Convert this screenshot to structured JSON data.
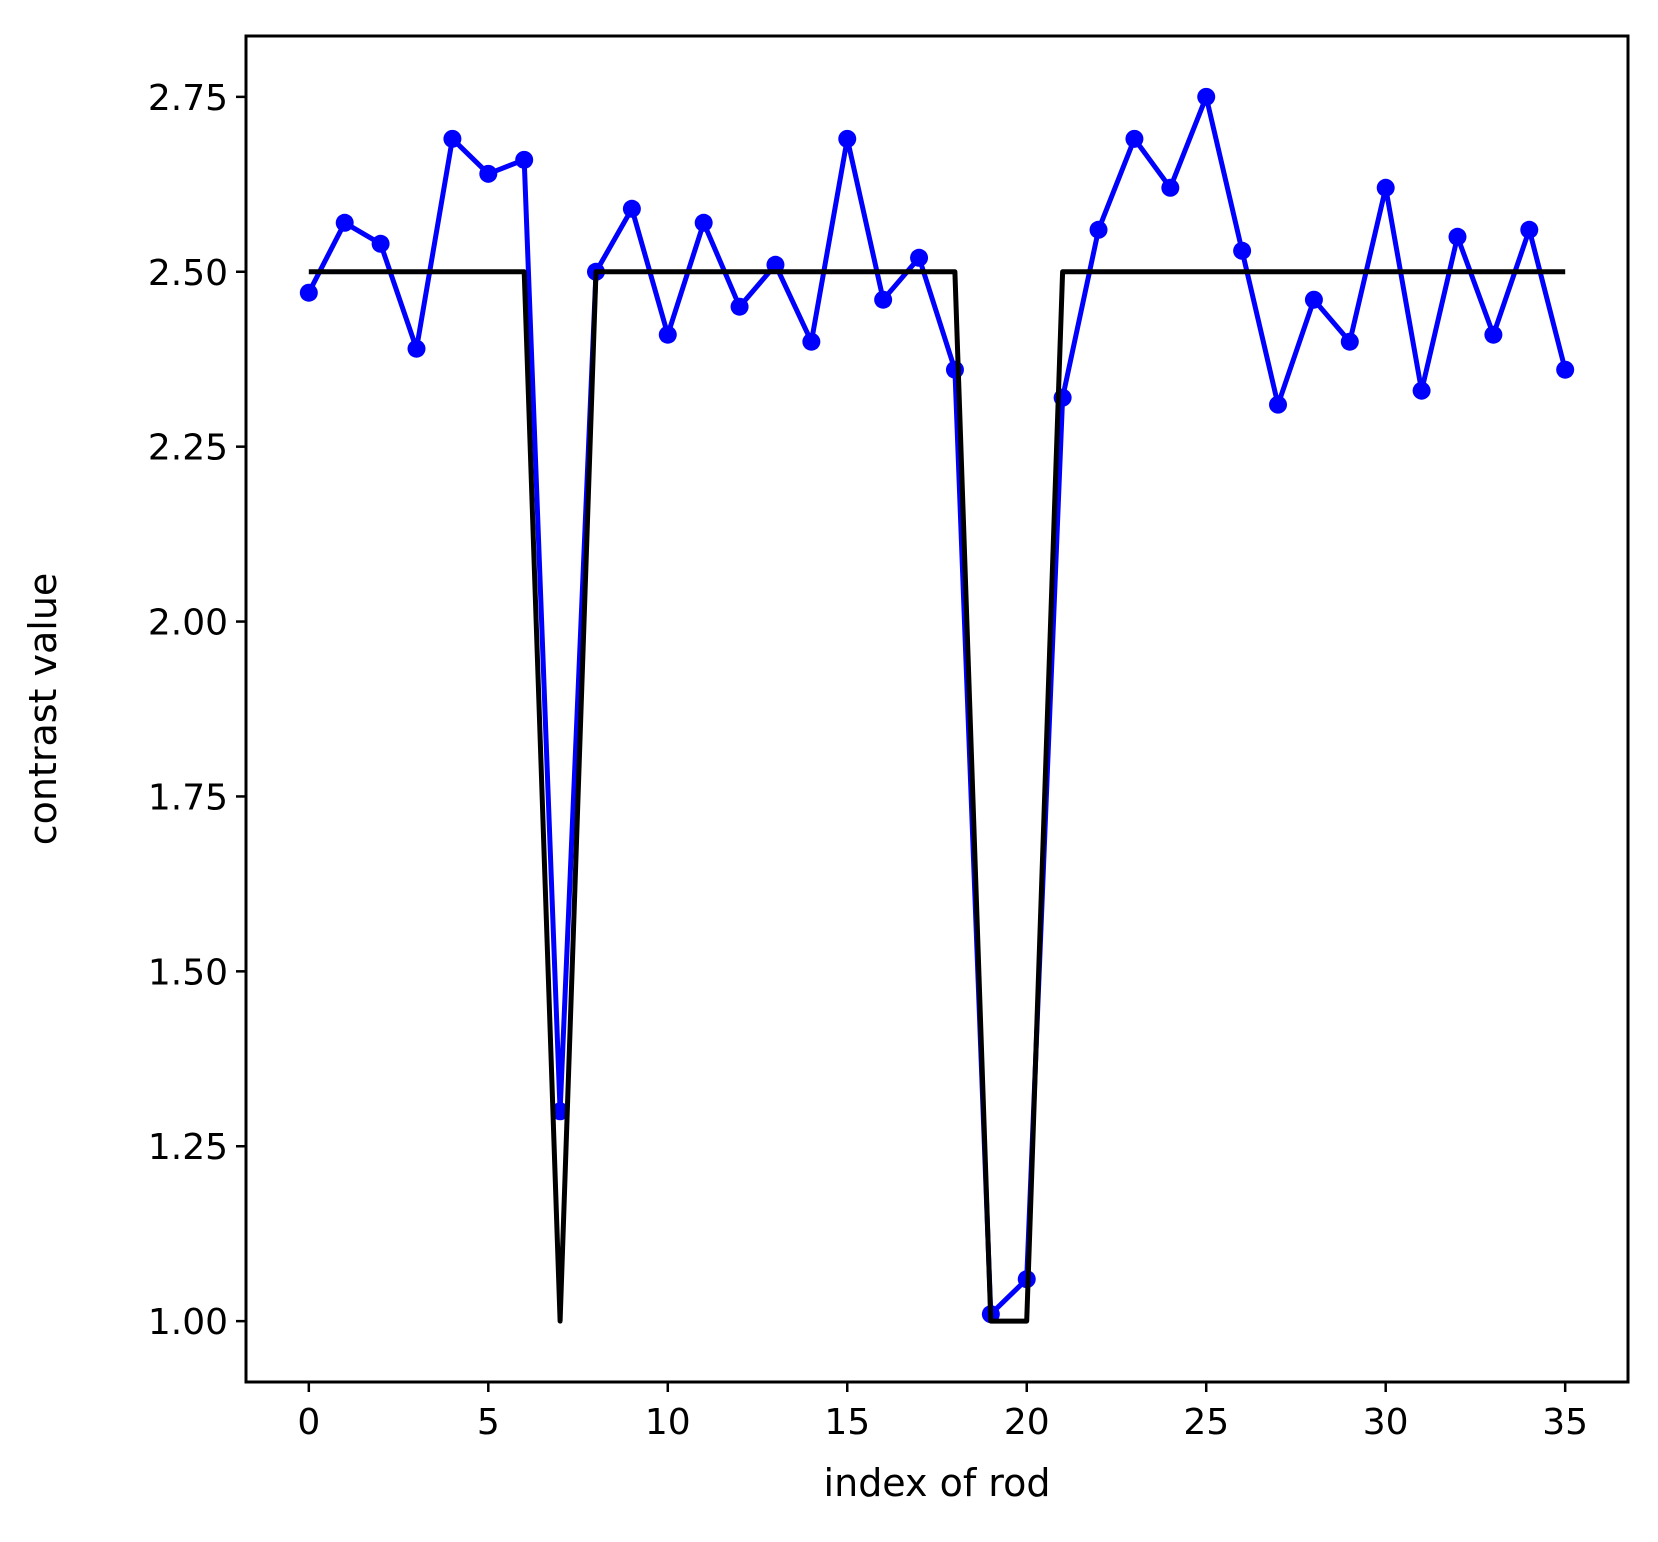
{
  "chart_data": {
    "type": "line",
    "title": "",
    "xlabel": "index of rod",
    "ylabel": "contrast value",
    "xlim": [
      -1.75,
      36.75
    ],
    "ylim": [
      0.913,
      2.837
    ],
    "xticks": [
      0,
      5,
      10,
      15,
      20,
      25,
      30,
      35
    ],
    "xtick_labels": [
      "0",
      "5",
      "10",
      "15",
      "20",
      "25",
      "30",
      "35"
    ],
    "yticks": [
      1.0,
      1.25,
      1.5,
      1.75,
      2.0,
      2.25,
      2.5,
      2.75
    ],
    "ytick_labels": [
      "1.00",
      "1.25",
      "1.50",
      "1.75",
      "2.00",
      "2.25",
      "2.50",
      "2.75"
    ],
    "grid": false,
    "legend": "none",
    "series": [
      {
        "color": "#0000ff",
        "marker": "circle",
        "x": [
          0,
          1,
          2,
          3,
          4,
          5,
          6,
          7,
          8,
          9,
          10,
          11,
          12,
          13,
          14,
          15,
          16,
          17,
          18,
          19,
          20,
          21,
          22,
          23,
          24,
          25,
          26,
          27,
          28,
          29,
          30,
          31,
          32,
          33,
          34,
          35
        ],
        "values": [
          2.47,
          2.57,
          2.54,
          2.39,
          2.69,
          2.64,
          2.66,
          1.3,
          2.5,
          2.59,
          2.41,
          2.57,
          2.45,
          2.51,
          2.4,
          2.69,
          2.46,
          2.52,
          2.36,
          1.01,
          1.06,
          2.32,
          2.56,
          2.69,
          2.62,
          2.75,
          2.53,
          2.31,
          2.46,
          2.4,
          2.62,
          2.33,
          2.55,
          2.41,
          2.56,
          2.36
        ]
      },
      {
        "color": "#000000",
        "marker": "none",
        "x": [
          0,
          1,
          2,
          3,
          4,
          5,
          6,
          7,
          8,
          9,
          10,
          11,
          12,
          13,
          14,
          15,
          16,
          17,
          18,
          19,
          20,
          21,
          22,
          23,
          24,
          25,
          26,
          27,
          28,
          29,
          30,
          31,
          32,
          33,
          34,
          35
        ],
        "values": [
          2.5,
          2.5,
          2.5,
          2.5,
          2.5,
          2.5,
          2.5,
          1.0,
          2.5,
          2.5,
          2.5,
          2.5,
          2.5,
          2.5,
          2.5,
          2.5,
          2.5,
          2.5,
          2.5,
          1.0,
          1.0,
          2.5,
          2.5,
          2.5,
          2.5,
          2.5,
          2.5,
          2.5,
          2.5,
          2.5,
          2.5,
          2.5,
          2.5,
          2.5,
          2.5,
          2.5
        ]
      }
    ]
  }
}
